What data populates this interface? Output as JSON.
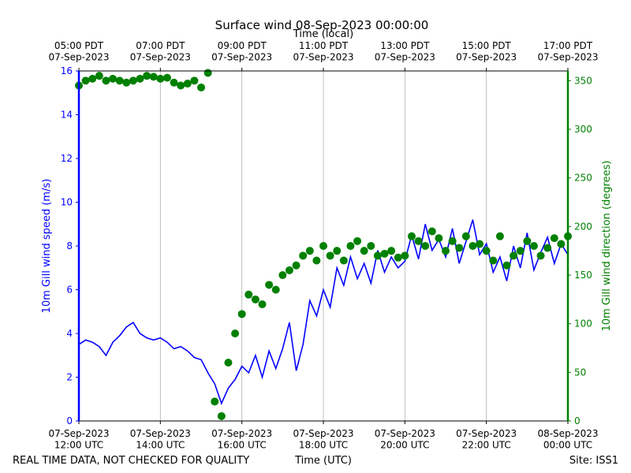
{
  "chart_data": {
    "type": "line",
    "title": "Surface wind 08-Sep-2023 00:00:00",
    "x2label": "Time (local)",
    "xlabel": "Time (UTC)",
    "ylabel": "10m Gill wind speed (m/s)",
    "y2label": "10m Gill wind direction (degrees)",
    "footer_left": "REAL TIME DATA, NOT CHECKED FOR QUALITY",
    "footer_right": "Site: ISS1",
    "grid": true,
    "xlim": [
      "07-Sep-2023 12:00",
      "08-Sep-2023 00:00"
    ],
    "xticks": [
      {
        "value": "07-Sep-2023 12:00",
        "label": "07-Sep-2023\n12:00 UTC"
      },
      {
        "value": "07-Sep-2023 14:00",
        "label": "07-Sep-2023\n14:00 UTC"
      },
      {
        "value": "07-Sep-2023 16:00",
        "label": "07-Sep-2023\n16:00 UTC"
      },
      {
        "value": "07-Sep-2023 18:00",
        "label": "07-Sep-2023\n18:00 UTC"
      },
      {
        "value": "07-Sep-2023 20:00",
        "label": "07-Sep-2023\n20:00 UTC"
      },
      {
        "value": "07-Sep-2023 22:00",
        "label": "07-Sep-2023\n22:00 UTC"
      },
      {
        "value": "08-Sep-2023 00:00",
        "label": "08-Sep-2023\n00:00 UTC"
      }
    ],
    "x2ticks": [
      {
        "value": "07-Sep-2023 12:00",
        "label": "05:00 PDT\n07-Sep-2023"
      },
      {
        "value": "07-Sep-2023 14:00",
        "label": "07:00 PDT\n07-Sep-2023"
      },
      {
        "value": "07-Sep-2023 16:00",
        "label": "09:00 PDT\n07-Sep-2023"
      },
      {
        "value": "07-Sep-2023 18:00",
        "label": "11:00 PDT\n07-Sep-2023"
      },
      {
        "value": "07-Sep-2023 20:00",
        "label": "13:00 PDT\n07-Sep-2023"
      },
      {
        "value": "07-Sep-2023 22:00",
        "label": "15:00 PDT\n07-Sep-2023"
      },
      {
        "value": "08-Sep-2023 00:00",
        "label": "17:00 PDT\n07-Sep-2023"
      }
    ],
    "ylim": [
      0,
      16
    ],
    "yticks": [
      0,
      2,
      4,
      6,
      8,
      10,
      12,
      14,
      16
    ],
    "y2lim": [
      0,
      360
    ],
    "y2ticks": [
      0,
      50,
      100,
      150,
      200,
      250,
      300,
      350
    ],
    "ycolor": "#0000ff",
    "y2color": "#008000",
    "x": [
      "07-Sep-2023 12:00",
      "07-Sep-2023 12:10",
      "07-Sep-2023 12:20",
      "07-Sep-2023 12:30",
      "07-Sep-2023 12:40",
      "07-Sep-2023 12:50",
      "07-Sep-2023 13:00",
      "07-Sep-2023 13:10",
      "07-Sep-2023 13:20",
      "07-Sep-2023 13:30",
      "07-Sep-2023 13:40",
      "07-Sep-2023 13:50",
      "07-Sep-2023 14:00",
      "07-Sep-2023 14:10",
      "07-Sep-2023 14:20",
      "07-Sep-2023 14:30",
      "07-Sep-2023 14:40",
      "07-Sep-2023 14:50",
      "07-Sep-2023 15:00",
      "07-Sep-2023 15:10",
      "07-Sep-2023 15:20",
      "07-Sep-2023 15:30",
      "07-Sep-2023 15:40",
      "07-Sep-2023 15:50",
      "07-Sep-2023 16:00",
      "07-Sep-2023 16:10",
      "07-Sep-2023 16:20",
      "07-Sep-2023 16:30",
      "07-Sep-2023 16:40",
      "07-Sep-2023 16:50",
      "07-Sep-2023 17:00",
      "07-Sep-2023 17:10",
      "07-Sep-2023 17:20",
      "07-Sep-2023 17:30",
      "07-Sep-2023 17:40",
      "07-Sep-2023 17:50",
      "07-Sep-2023 18:00",
      "07-Sep-2023 18:10",
      "07-Sep-2023 18:20",
      "07-Sep-2023 18:30",
      "07-Sep-2023 18:40",
      "07-Sep-2023 18:50",
      "07-Sep-2023 19:00",
      "07-Sep-2023 19:10",
      "07-Sep-2023 19:20",
      "07-Sep-2023 19:30",
      "07-Sep-2023 19:40",
      "07-Sep-2023 19:50",
      "07-Sep-2023 20:00",
      "07-Sep-2023 20:10",
      "07-Sep-2023 20:20",
      "07-Sep-2023 20:30",
      "07-Sep-2023 20:40",
      "07-Sep-2023 20:50",
      "07-Sep-2023 21:00",
      "07-Sep-2023 21:10",
      "07-Sep-2023 21:20",
      "07-Sep-2023 21:30",
      "07-Sep-2023 21:40",
      "07-Sep-2023 21:50",
      "07-Sep-2023 22:00",
      "07-Sep-2023 22:10",
      "07-Sep-2023 22:20",
      "07-Sep-2023 22:30",
      "07-Sep-2023 22:40",
      "07-Sep-2023 22:50",
      "07-Sep-2023 23:00",
      "07-Sep-2023 23:10",
      "07-Sep-2023 23:20",
      "07-Sep-2023 23:30",
      "07-Sep-2023 23:40",
      "07-Sep-2023 23:50",
      "08-Sep-2023 00:00"
    ],
    "series": [
      {
        "name": "10m Gill wind speed (m/s)",
        "type": "line",
        "axis": "y",
        "color": "#0000ff",
        "values": [
          3.5,
          3.7,
          3.6,
          3.4,
          3.0,
          3.6,
          3.9,
          4.3,
          4.5,
          4.0,
          3.8,
          3.7,
          3.8,
          3.6,
          3.3,
          3.4,
          3.2,
          2.9,
          2.8,
          2.2,
          1.7,
          0.8,
          1.5,
          1.9,
          2.5,
          2.2,
          3.0,
          2.0,
          3.2,
          2.4,
          3.3,
          4.5,
          2.3,
          3.5,
          5.5,
          4.8,
          6.0,
          5.2,
          7.0,
          6.2,
          7.5,
          6.5,
          7.2,
          6.3,
          7.8,
          6.8,
          7.5,
          7.0,
          7.3,
          8.5,
          7.4,
          9.0,
          7.8,
          8.3,
          7.5,
          8.8,
          7.2,
          8.2,
          9.2,
          7.6,
          8.1,
          6.8,
          7.5,
          6.4,
          8.0,
          7.0,
          8.6,
          6.9,
          7.7,
          8.4,
          7.2,
          8.1,
          7.6
        ]
      },
      {
        "name": "10m Gill wind direction (degrees)",
        "type": "scatter",
        "axis": "y2",
        "color": "#008000",
        "values": [
          345,
          350,
          352,
          355,
          350,
          352,
          350,
          348,
          350,
          352,
          355,
          354,
          352,
          353,
          348,
          345,
          347,
          350,
          343,
          358,
          20,
          5,
          60,
          90,
          110,
          130,
          125,
          120,
          140,
          135,
          150,
          155,
          160,
          170,
          175,
          165,
          180,
          170,
          175,
          165,
          180,
          185,
          175,
          180,
          170,
          172,
          175,
          168,
          170,
          190,
          185,
          180,
          195,
          188,
          175,
          185,
          178,
          190,
          180,
          182,
          175,
          165,
          190,
          160,
          170,
          175,
          185,
          180,
          170,
          178,
          188,
          182,
          190
        ]
      }
    ]
  }
}
